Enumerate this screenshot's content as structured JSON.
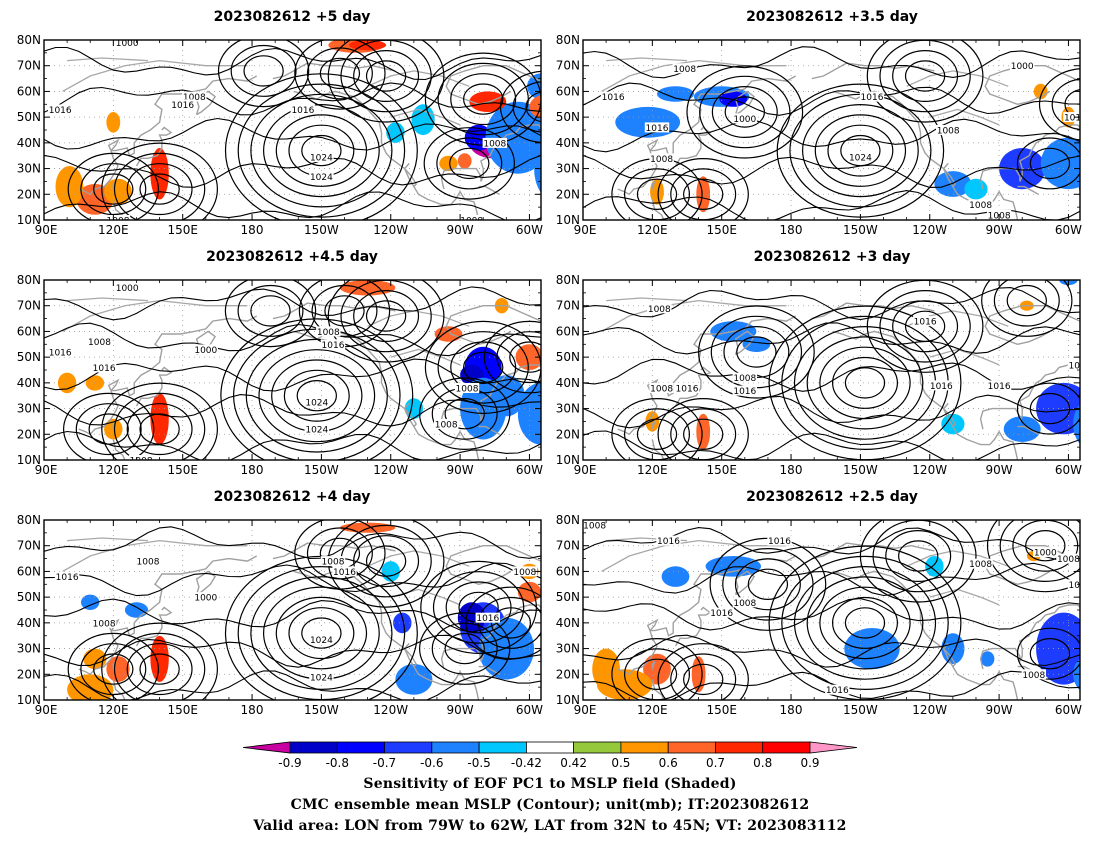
{
  "panels": [
    {
      "title": "2023082612 +5 day",
      "highs": [
        [
          -150,
          37,
          7,
          "1024"
        ],
        [
          -122,
          66,
          4,
          ""
        ],
        [
          -142,
          67,
          3,
          ""
        ]
      ],
      "lows": [
        [
          120,
          22,
          3,
          ""
        ],
        [
          140,
          22,
          4,
          ""
        ],
        [
          -80,
          57,
          4,
          ""
        ],
        [
          -53,
          54,
          3,
          ""
        ],
        [
          -86,
          32,
          3,
          ""
        ],
        [
          -175,
          68,
          3,
          ""
        ]
      ],
      "labels": [
        [
          126,
          79,
          "1000"
        ],
        [
          97,
          53,
          "1016"
        ],
        [
          155,
          58,
          "1008"
        ],
        [
          150,
          55,
          "1016"
        ],
        [
          -158,
          53,
          "1016"
        ],
        [
          -150,
          27,
          "1024"
        ],
        [
          -75,
          40,
          "1008"
        ],
        [
          -85,
          10,
          "1008"
        ],
        [
          122,
          10,
          "1008"
        ]
      ],
      "blobs": [
        [
          -76,
          40,
          10,
          6,
          -0.9
        ],
        [
          -82,
          42,
          6,
          5,
          -0.7
        ],
        [
          -65,
          42,
          14,
          14,
          -0.55
        ],
        [
          -50,
          30,
          8,
          12,
          -0.5
        ],
        [
          -55,
          62,
          6,
          5,
          -0.55
        ],
        [
          -106,
          49,
          5,
          6,
          -0.45
        ],
        [
          -118,
          44,
          4,
          4,
          -0.45
        ],
        [
          -52,
          54,
          8,
          5,
          0.6
        ],
        [
          -78,
          56,
          8,
          4,
          0.7
        ],
        [
          140,
          28,
          4,
          10,
          0.72
        ],
        [
          112,
          18,
          8,
          6,
          0.6
        ],
        [
          101,
          23,
          6,
          8,
          0.55
        ],
        [
          122,
          21,
          6,
          5,
          0.52
        ],
        [
          -135,
          78,
          12,
          3,
          0.65
        ],
        [
          -130,
          78,
          8,
          2,
          0.75
        ],
        [
          120,
          48,
          3,
          4,
          0.5
        ],
        [
          -95,
          32,
          4,
          3,
          0.5
        ],
        [
          -88,
          33,
          3,
          3,
          0.6
        ]
      ]
    },
    {
      "title": "2023082612 +3.5 day",
      "highs": [
        [
          -150,
          37,
          6,
          "1024"
        ],
        [
          -122,
          66,
          4,
          ""
        ]
      ],
      "lows": [
        [
          160,
          52,
          4,
          "1000"
        ],
        [
          122,
          20,
          3,
          ""
        ],
        [
          142,
          20,
          3,
          ""
        ],
        [
          -68,
          32,
          2,
          ""
        ],
        [
          -53,
          55,
          3,
          ""
        ]
      ],
      "labels": [
        [
          103,
          58,
          "1016"
        ],
        [
          122,
          46,
          "1016"
        ],
        [
          124,
          34,
          "1008"
        ],
        [
          134,
          69,
          "1008"
        ],
        [
          -145,
          58,
          "1016"
        ],
        [
          -112,
          45,
          "1008"
        ],
        [
          -98,
          16,
          "1008"
        ],
        [
          -90,
          12,
          "1008"
        ],
        [
          -57,
          50,
          "1016"
        ],
        [
          -80,
          70,
          "1000"
        ]
      ],
      "blobs": [
        [
          130,
          59,
          8,
          3,
          -0.5
        ],
        [
          150,
          58,
          12,
          4,
          -0.55
        ],
        [
          155,
          57,
          6,
          3,
          -0.7
        ],
        [
          118,
          48,
          14,
          6,
          -0.5
        ],
        [
          -80,
          30,
          10,
          8,
          -0.6
        ],
        [
          -60,
          32,
          12,
          10,
          -0.55
        ],
        [
          -50,
          28,
          6,
          14,
          -0.5
        ],
        [
          -110,
          24,
          8,
          5,
          -0.5
        ],
        [
          -100,
          22,
          5,
          4,
          -0.45
        ],
        [
          142,
          20,
          3,
          7,
          0.6
        ],
        [
          122,
          21,
          3,
          5,
          0.5
        ],
        [
          -72,
          60,
          3,
          3,
          0.52
        ],
        [
          -60,
          50,
          3,
          4,
          0.5
        ]
      ]
    },
    {
      "title": "2023082612 +4.5 day",
      "highs": [
        [
          -152,
          35,
          7,
          "1024"
        ],
        [
          -122,
          66,
          4,
          ""
        ],
        [
          -140,
          68,
          3,
          ""
        ]
      ],
      "lows": [
        [
          118,
          22,
          3,
          ""
        ],
        [
          140,
          22,
          4,
          ""
        ],
        [
          -80,
          46,
          4,
          ""
        ],
        [
          -60,
          50,
          3,
          ""
        ],
        [
          -88,
          28,
          3,
          ""
        ],
        [
          -172,
          68,
          3,
          ""
        ]
      ],
      "labels": [
        [
          126,
          77,
          "1000"
        ],
        [
          97,
          52,
          "1016"
        ],
        [
          114,
          56,
          "1008"
        ],
        [
          116,
          46,
          "1016"
        ],
        [
          160,
          53,
          "1000"
        ],
        [
          -147,
          60,
          "1008"
        ],
        [
          -145,
          55,
          "1016"
        ],
        [
          -152,
          22,
          "1024"
        ],
        [
          -87,
          38,
          "1008"
        ],
        [
          -96,
          24,
          "1008"
        ],
        [
          132,
          10,
          "1008"
        ]
      ],
      "blobs": [
        [
          -80,
          46,
          8,
          8,
          -0.7
        ],
        [
          -85,
          43,
          5,
          4,
          -0.8
        ],
        [
          -80,
          30,
          10,
          12,
          -0.55
        ],
        [
          -70,
          35,
          8,
          8,
          -0.5
        ],
        [
          -55,
          28,
          10,
          12,
          -0.5
        ],
        [
          -110,
          30,
          4,
          4,
          -0.45
        ],
        [
          -60,
          50,
          6,
          5,
          0.6
        ],
        [
          -95,
          59,
          6,
          3,
          0.6
        ],
        [
          -130,
          77,
          12,
          3,
          0.65
        ],
        [
          140,
          26,
          4,
          10,
          0.72
        ],
        [
          120,
          22,
          4,
          4,
          0.52
        ],
        [
          112,
          40,
          4,
          3,
          0.5
        ],
        [
          100,
          40,
          4,
          4,
          0.5
        ],
        [
          -72,
          70,
          3,
          3,
          0.5
        ]
      ]
    },
    {
      "title": "2023082612 +3 day",
      "highs": [
        [
          -148,
          40,
          7,
          ""
        ],
        [
          -122,
          62,
          4,
          ""
        ]
      ],
      "lows": [
        [
          165,
          52,
          4,
          ""
        ],
        [
          122,
          20,
          3,
          ""
        ],
        [
          142,
          20,
          3,
          ""
        ],
        [
          -68,
          30,
          2,
          ""
        ],
        [
          -78,
          72,
          3,
          ""
        ]
      ],
      "labels": [
        [
          124,
          38,
          "1008"
        ],
        [
          135,
          38,
          "1016"
        ],
        [
          160,
          42,
          "1008"
        ],
        [
          160,
          37,
          "1016"
        ],
        [
          123,
          69,
          "1008"
        ],
        [
          -122,
          64,
          "1016"
        ],
        [
          -115,
          39,
          "1016"
        ],
        [
          -90,
          39,
          "1016"
        ],
        [
          -55,
          47,
          "1016"
        ]
      ],
      "blobs": [
        [
          155,
          60,
          10,
          4,
          -0.55
        ],
        [
          165,
          55,
          6,
          3,
          -0.5
        ],
        [
          -62,
          30,
          12,
          10,
          -0.6
        ],
        [
          -50,
          24,
          8,
          10,
          -0.55
        ],
        [
          -80,
          22,
          8,
          5,
          -0.5
        ],
        [
          -110,
          24,
          5,
          4,
          -0.45
        ],
        [
          142,
          21,
          3,
          7,
          0.65
        ],
        [
          120,
          25,
          3,
          4,
          0.5
        ],
        [
          -78,
          70,
          3,
          2,
          0.52
        ],
        [
          -60,
          80,
          4,
          2,
          -0.5
        ]
      ]
    },
    {
      "title": "2023082612 +4 day",
      "highs": [
        [
          -150,
          36,
          7,
          "1024"
        ],
        [
          -122,
          64,
          4,
          ""
        ],
        [
          -142,
          67,
          3,
          ""
        ]
      ],
      "lows": [
        [
          120,
          22,
          3,
          ""
        ],
        [
          140,
          22,
          4,
          ""
        ],
        [
          -82,
          46,
          4,
          ""
        ],
        [
          -68,
          40,
          3,
          ""
        ],
        [
          -88,
          30,
          3,
          ""
        ]
      ],
      "labels": [
        [
          100,
          58,
          "1016"
        ],
        [
          116,
          40,
          "1008"
        ],
        [
          135,
          64,
          "1008"
        ],
        [
          160,
          50,
          "1000"
        ],
        [
          -145,
          64,
          "1008"
        ],
        [
          -140,
          60,
          "1016"
        ],
        [
          -150,
          19,
          "1024"
        ],
        [
          -78,
          42,
          "1016"
        ],
        [
          -62,
          60,
          "1008"
        ],
        [
          -50,
          53,
          "101"
        ]
      ],
      "blobs": [
        [
          -80,
          38,
          10,
          10,
          -0.6
        ],
        [
          -85,
          42,
          6,
          6,
          -0.8
        ],
        [
          -70,
          30,
          12,
          12,
          -0.5
        ],
        [
          -110,
          18,
          8,
          6,
          -0.5
        ],
        [
          -115,
          40,
          4,
          4,
          -0.6
        ],
        [
          -120,
          60,
          4,
          4,
          -0.45
        ],
        [
          -60,
          52,
          5,
          4,
          0.6
        ],
        [
          -60,
          60,
          4,
          3,
          0.55
        ],
        [
          140,
          26,
          4,
          9,
          0.72
        ],
        [
          122,
          22,
          5,
          5,
          0.6
        ],
        [
          112,
          26,
          5,
          4,
          0.55
        ],
        [
          110,
          14,
          10,
          6,
          0.55
        ],
        [
          -130,
          77,
          12,
          2,
          0.65
        ],
        [
          110,
          48,
          4,
          3,
          -0.5
        ],
        [
          130,
          45,
          5,
          3,
          -0.5
        ]
      ]
    },
    {
      "title": "2023082612 +2.5 day",
      "highs": [
        [
          -148,
          40,
          7,
          ""
        ],
        [
          -125,
          66,
          4,
          ""
        ]
      ],
      "lows": [
        [
          170,
          55,
          4,
          ""
        ],
        [
          122,
          20,
          3,
          ""
        ],
        [
          142,
          18,
          3,
          ""
        ],
        [
          -68,
          28,
          2,
          ""
        ],
        [
          -70,
          70,
          4,
          "1000"
        ]
      ],
      "labels": [
        [
          95,
          78,
          "1008"
        ],
        [
          127,
          72,
          "1016"
        ],
        [
          175,
          72,
          "1016"
        ],
        [
          160,
          48,
          "1008"
        ],
        [
          150,
          44,
          "1016"
        ],
        [
          -160,
          14,
          "1016"
        ],
        [
          -98,
          63,
          "1008"
        ],
        [
          -75,
          20,
          "1008"
        ],
        [
          -55,
          55,
          "1016"
        ],
        [
          -60,
          65,
          "1008"
        ]
      ],
      "blobs": [
        [
          155,
          62,
          12,
          4,
          -0.55
        ],
        [
          130,
          58,
          6,
          4,
          -0.5
        ],
        [
          -145,
          30,
          12,
          8,
          -0.55
        ],
        [
          -110,
          30,
          5,
          6,
          -0.5
        ],
        [
          -62,
          30,
          12,
          14,
          -0.6
        ],
        [
          -50,
          20,
          8,
          8,
          -0.5
        ],
        [
          -118,
          62,
          4,
          4,
          -0.45
        ],
        [
          140,
          20,
          3,
          7,
          0.65
        ],
        [
          122,
          22,
          6,
          6,
          0.6
        ],
        [
          108,
          16,
          12,
          6,
          0.55
        ],
        [
          100,
          22,
          6,
          8,
          0.52
        ],
        [
          -75,
          66,
          3,
          2,
          0.5
        ],
        [
          -95,
          26,
          3,
          3,
          -0.5
        ]
      ]
    }
  ],
  "axes": {
    "xticks": [
      "90E",
      "120E",
      "150E",
      "180",
      "150W",
      "120W",
      "90W",
      "60W"
    ],
    "yticks": [
      "10N",
      "20N",
      "30N",
      "40N",
      "50N",
      "60N",
      "70N",
      "80N"
    ]
  },
  "colorbar": {
    "labels": [
      "-0.9",
      "-0.8",
      "-0.7",
      "-0.6",
      "-0.5",
      "-0.42",
      "0.42",
      "0.5",
      "0.6",
      "0.7",
      "0.8",
      "0.9"
    ],
    "colors": [
      "#c800a0",
      "#0000c8",
      "#0000ff",
      "#1e3cff",
      "#1e82ff",
      "#00c8ff",
      "#ffffff",
      "#96c83c",
      "#ff9600",
      "#ff6428",
      "#ff2800",
      "#ff0000",
      "#ff96c8"
    ]
  },
  "caption": {
    "line1": "Sensitivity of EOF PC1 to MSLP field (Shaded)",
    "line2": "CMC ensemble mean MSLP (Contour); unit(mb); IT:2023082612",
    "line3": "Valid area: LON from 79W to 62W, LAT from 32N to 45N; VT: 2023083112"
  }
}
